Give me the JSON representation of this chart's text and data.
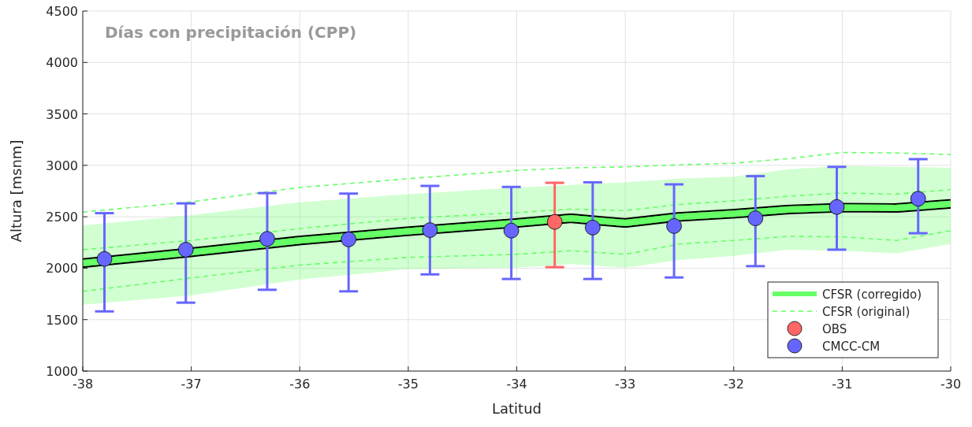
{
  "chart_data": {
    "type": "line",
    "title": "Días con precipitación (CPP)",
    "xlabel": "Latitud",
    "ylabel": "Altura [msnm]",
    "xlim": [
      -38,
      -30
    ],
    "xticks": [
      -38,
      -37,
      -36,
      -35,
      -34,
      -33,
      -32,
      -31,
      -30
    ],
    "ylim": [
      1000,
      4500
    ],
    "yticks": [
      1000,
      1500,
      2000,
      2500,
      3000,
      3500,
      4000,
      4500
    ],
    "grid": true,
    "legend": "bottom right",
    "series": [
      {
        "name": "CFSR (corregido)",
        "line_style": "solid",
        "color": "#66ff66",
        "x": [
          -38,
          -37,
          -36,
          -35,
          -34,
          -33.5,
          -33,
          -32.5,
          -32,
          -31.5,
          -31,
          -30.5,
          -30
        ],
        "values": [
          2050,
          2155,
          2270,
          2360,
          2440,
          2485,
          2440,
          2500,
          2530,
          2570,
          2590,
          2585,
          2625
        ],
        "lower": [
          1645,
          1735,
          1890,
          1990,
          2005,
          2040,
          2005,
          2080,
          2120,
          2180,
          2170,
          2145,
          2235
        ],
        "upper": [
          2415,
          2515,
          2640,
          2720,
          2785,
          2810,
          2835,
          2870,
          2890,
          2960,
          2995,
          2985,
          2975
        ]
      },
      {
        "name": "CFSR (original)",
        "line_style": "dashed",
        "color": "#66ff66",
        "x": [
          -38,
          -37,
          -36,
          -35,
          -34,
          -33.5,
          -33,
          -32.5,
          -32,
          -31.5,
          -31,
          -30.5,
          -30
        ],
        "values": [
          2180,
          2270,
          2385,
          2485,
          2540,
          2575,
          2560,
          2620,
          2655,
          2700,
          2730,
          2720,
          2765
        ]
      },
      {
        "line_style": "dashed",
        "color": "#66ff66",
        "x": [
          -38,
          -37,
          -36,
          -35,
          -34,
          -33.5,
          -33,
          -32.5,
          -32,
          -31.5,
          -31,
          -30.5,
          -30
        ],
        "values": [
          2545,
          2645,
          2785,
          2870,
          2950,
          2975,
          2985,
          3005,
          3020,
          3065,
          3125,
          3120,
          3105
        ]
      },
      {
        "line_style": "dashed",
        "color": "#66ff66",
        "x": [
          -38,
          -37,
          -36,
          -35,
          -34,
          -33.5,
          -33,
          -32.5,
          -32,
          -31.5,
          -31,
          -30.5,
          -30
        ],
        "values": [
          1775,
          1905,
          2030,
          2105,
          2135,
          2170,
          2135,
          2235,
          2270,
          2310,
          2305,
          2270,
          2365
        ]
      },
      {
        "name": "OBS",
        "type": "scatter",
        "marker": "circle",
        "color": "#ff6666",
        "x": [
          -33.65
        ],
        "values": [
          2450
        ],
        "errors": [
          [
            2010,
            2830
          ]
        ]
      },
      {
        "name": "CMCC-CM",
        "type": "scatter",
        "marker": "circle",
        "color": "#6666ff",
        "x": [
          -37.8,
          -37.05,
          -36.3,
          -35.55,
          -34.8,
          -34.05,
          -33.3,
          -32.55,
          -31.8,
          -31.05,
          -30.3
        ],
        "values": [
          2090,
          2180,
          2285,
          2280,
          2370,
          2365,
          2395,
          2410,
          2485,
          2595,
          2675
        ],
        "errors": [
          [
            1580,
            2535
          ],
          [
            1665,
            2630
          ],
          [
            1790,
            2730
          ],
          [
            1775,
            2725
          ],
          [
            1940,
            2800
          ],
          [
            1895,
            2790
          ],
          [
            1895,
            2835
          ],
          [
            1910,
            2815
          ],
          [
            2020,
            2895
          ],
          [
            2180,
            2985
          ],
          [
            2340,
            3060
          ]
        ]
      }
    ]
  }
}
